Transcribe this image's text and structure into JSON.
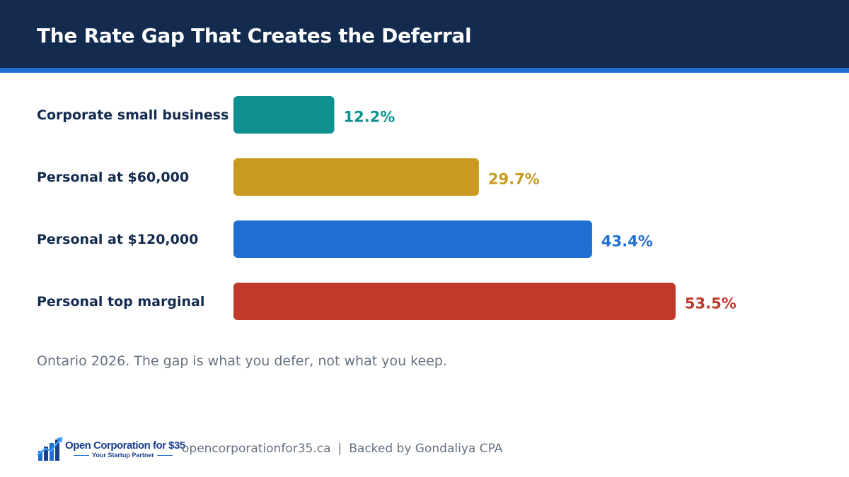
{
  "header": {
    "title": "The Rate Gap That Creates the Deferral"
  },
  "chart_data": {
    "type": "bar",
    "orientation": "horizontal",
    "categories": [
      "Corporate small business",
      "Personal at $60,000",
      "Personal at $120,000",
      "Personal top marginal"
    ],
    "values": [
      12.2,
      29.7,
      43.4,
      53.5
    ],
    "value_labels": [
      "12.2%",
      "29.7%",
      "43.4%",
      "53.5%"
    ],
    "colors": [
      "#0e9090",
      "#c99a1f",
      "#1e6fd1",
      "#c0392b"
    ],
    "unit": "%",
    "xlim": [
      0,
      100
    ],
    "grid": false,
    "legend": "none"
  },
  "note": "Ontario 2026. The gap is what you defer, not what you keep.",
  "footer": {
    "logo_name": "Open Corporation for $35",
    "logo_tagline": "Your Startup Partner",
    "website": "opencorporationfor35.ca",
    "separator": "|",
    "backer": "Backed by Gondaliya CPA"
  }
}
